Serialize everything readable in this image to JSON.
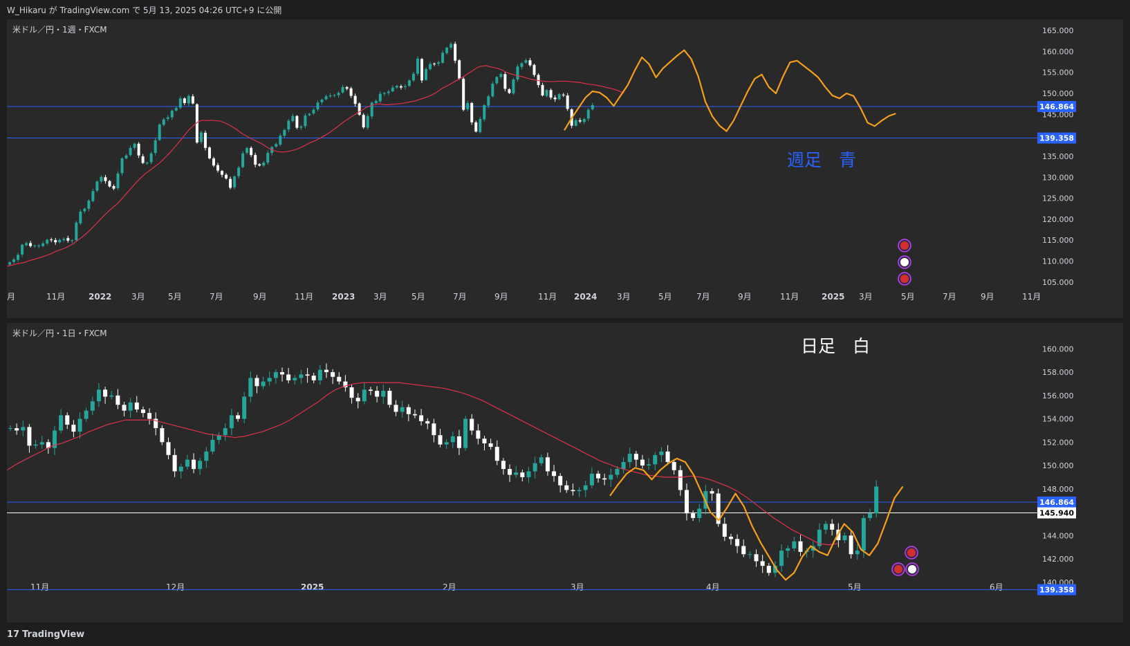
{
  "header": {
    "publish_text": "W_Hikaru が TradingView.com で 5月 13, 2025 04:26 UTC+9 に公開"
  },
  "footer": {
    "brand": "TradingView",
    "logo_icon": "tradingview-logo-icon"
  },
  "colors": {
    "background": "#292929",
    "up": "#26a69a",
    "down": "#ffffff",
    "ma": "#e0314b",
    "trend": "#f59f1c",
    "hline_blue": "#2962ff",
    "hline_white": "#ffffff",
    "label_bg": "#2962ff"
  },
  "chart_data": [
    {
      "type": "candlestick",
      "title": "米ドル／円・1週・FXCM",
      "annotation": "週足　青",
      "ylim": [
        103,
        166
      ],
      "yticks": [
        "165.000",
        "160.000",
        "155.000",
        "150.000",
        "145.000",
        "140.000",
        "135.000",
        "130.000",
        "125.000",
        "120.000",
        "115.000",
        "110.000",
        "105.000"
      ],
      "x_tick_labels": [
        "月",
        "11月",
        "2022",
        "3月",
        "5月",
        "7月",
        "9月",
        "11月",
        "2023",
        "3月",
        "5月",
        "7月",
        "9月",
        "11月",
        "2024",
        "3月",
        "5月",
        "7月",
        "9月",
        "11月",
        "2025",
        "3月",
        "5月",
        "7月",
        "9月",
        "11月"
      ],
      "x_bold_labels": [
        "2022",
        "2023",
        "2024",
        "2025"
      ],
      "horizontal_lines": [
        {
          "value": 146.864,
          "label": "146.864",
          "color": "#2962ff"
        },
        {
          "value": 139.358,
          "label": "139.358",
          "color": "#2962ff"
        }
      ],
      "series": [
        {
          "name": "close",
          "values": [
            109.7,
            110.4,
            111.5,
            113.9,
            114.3,
            113.6,
            113.7,
            113.7,
            114.2,
            115.1,
            115.0,
            114.5,
            115.1,
            115.3,
            114.9,
            115.0,
            119.2,
            121.8,
            122.5,
            124.4,
            126.7,
            129.0,
            130.1,
            129.1,
            127.8,
            127.3,
            130.9,
            134.5,
            135.2,
            137.0,
            138.0,
            135.2,
            133.4,
            133.5,
            135.7,
            138.8,
            142.6,
            143.8,
            144.3,
            145.9,
            146.5,
            148.8,
            147.7,
            149.4,
            147.6,
            138.3,
            140.7,
            137.0,
            134.5,
            132.8,
            131.6,
            130.6,
            129.7,
            127.5,
            130.2,
            132.3,
            135.7,
            137.0,
            135.3,
            133.0,
            132.8,
            133.5,
            135.8,
            137.2,
            137.9,
            139.9,
            141.3,
            143.5,
            144.6,
            141.8,
            142.1,
            144.7,
            145.1,
            146.1,
            147.8,
            148.5,
            149.3,
            149.5,
            149.6,
            150.1,
            151.5,
            151.1,
            149.4,
            147.5,
            144.9,
            141.9,
            144.6,
            147.8,
            148.2,
            149.9,
            150.1,
            150.4,
            151.4,
            151.8,
            151.4,
            151.7,
            153.1,
            154.7,
            158.3,
            153.1,
            155.8,
            157.0,
            157.0,
            157.4,
            159.7,
            160.9,
            161.8,
            157.8,
            153.5,
            146.1,
            147.7,
            143.1,
            140.9,
            143.9,
            147.2,
            149.3,
            152.3,
            153.9,
            154.6,
            151.1,
            150.1,
            153.3,
            156.4,
            157.2,
            157.9,
            156.7,
            154.4,
            152.0,
            149.5,
            150.8,
            149.0,
            148.6,
            149.8,
            149.5,
            146.3,
            142.3,
            143.6,
            143.3,
            143.9,
            146.1,
            147.2
          ],
          "opens": [
            109.2,
            109.8,
            110.3,
            111.6,
            113.8,
            114.3,
            113.7,
            113.7,
            113.6,
            114.2,
            115.2,
            115.0,
            114.5,
            115.0,
            115.5,
            114.9,
            115.0,
            119.0,
            121.9,
            122.5,
            124.3,
            126.8,
            129.0,
            130.0,
            129.1,
            127.9,
            127.4,
            131.0,
            134.5,
            135.3,
            137.0,
            138.0,
            135.0,
            133.3,
            133.6,
            135.8,
            138.9,
            142.5,
            143.9,
            144.3,
            145.9,
            146.6,
            148.8,
            147.6,
            149.3,
            147.4,
            138.4,
            140.6,
            137.1,
            134.5,
            132.9,
            131.5,
            130.6,
            129.6,
            127.6,
            130.3,
            132.4,
            135.8,
            137.0,
            135.3,
            133.1,
            132.8,
            133.5,
            135.8,
            137.3,
            137.8,
            139.9,
            141.4,
            143.4,
            144.6,
            141.8,
            142.2,
            144.8,
            145.2,
            146.2,
            147.9,
            148.6,
            149.3,
            149.6,
            149.6,
            150.2,
            151.5,
            151.2,
            149.4,
            147.6,
            144.9,
            141.8,
            144.5,
            147.7,
            148.1,
            149.9,
            150.1,
            150.5,
            151.4,
            151.7,
            151.5,
            151.8,
            153.1,
            154.7,
            158.2,
            153.2,
            155.8,
            157.1,
            157.1,
            157.3,
            159.6,
            160.9,
            161.8,
            157.9,
            153.5,
            146.2,
            147.7,
            143.1,
            140.8,
            143.8,
            147.1,
            149.3,
            152.4,
            153.9,
            154.6,
            151.0,
            150.0,
            153.3,
            156.3,
            157.3,
            157.9,
            156.8,
            154.4,
            152.0,
            149.4,
            150.8,
            149.0,
            148.6,
            149.7,
            149.5,
            146.2,
            142.3,
            143.6,
            143.2,
            144.0,
            146.2
          ]
        },
        {
          "name": "MA",
          "values": [
            108.8,
            109.0,
            109.3,
            109.5,
            109.7,
            110.1,
            110.4,
            110.7,
            111.0,
            111.4,
            111.8,
            112.3,
            112.7,
            113.1,
            113.6,
            114.2,
            115.0,
            115.8,
            116.7,
            117.7,
            118.8,
            119.9,
            121.0,
            122.0,
            122.9,
            123.8,
            125.0,
            126.2,
            127.4,
            128.6,
            129.7,
            130.7,
            131.5,
            132.3,
            133.1,
            134.0,
            135.1,
            136.2,
            137.4,
            138.7,
            140.0,
            141.3,
            142.3,
            143.2,
            143.6,
            143.5,
            143.6,
            143.5,
            143.4,
            143.0,
            142.5,
            141.9,
            141.2,
            140.4,
            139.8,
            139.2,
            138.7,
            138.2,
            137.6,
            136.9,
            136.4,
            136.1,
            136.0,
            136.1,
            136.3,
            136.6,
            137.0,
            137.5,
            138.1,
            138.5,
            139.0,
            139.6,
            140.2,
            140.9,
            141.7,
            142.5,
            143.3,
            144.0,
            144.7,
            145.4,
            146.0,
            146.7,
            147.1,
            147.4,
            147.5,
            147.3,
            147.3,
            147.4,
            147.5,
            147.6,
            147.8,
            148.0,
            148.2,
            148.6,
            148.9,
            149.3,
            149.8,
            150.4,
            151.2,
            151.7,
            152.3,
            152.9,
            153.5,
            154.1,
            154.8,
            155.5,
            156.2,
            156.5,
            156.6,
            156.3,
            156.1,
            155.8,
            155.3,
            154.8,
            154.5,
            154.2,
            154.0,
            153.7,
            153.4,
            153.2,
            153.0,
            152.9,
            152.8,
            152.8,
            152.9,
            152.9,
            152.9,
            152.8,
            152.7,
            152.6,
            152.4,
            152.2,
            152.1,
            151.9,
            151.7,
            151.4,
            151.2,
            150.9,
            150.5,
            150.1
          ]
        },
        {
          "name": "trend",
          "values": [
            141.2,
            144.0,
            146.5,
            149.0,
            150.5,
            150.2,
            149.0,
            147.0,
            149.5,
            152.0,
            155.5,
            158.6,
            157.0,
            153.8,
            156.0,
            157.5,
            159.0,
            160.3,
            158.2,
            154.0,
            148.0,
            144.5,
            142.3,
            141.0,
            143.5,
            147.0,
            150.5,
            153.5,
            154.5,
            151.5,
            150.0,
            154.0,
            157.4,
            157.8,
            156.5,
            155.2,
            153.8,
            151.5,
            149.5,
            148.8,
            150.0,
            149.4,
            146.5,
            143.0,
            142.2,
            143.5,
            144.6,
            145.2
          ]
        }
      ]
    },
    {
      "type": "candlestick",
      "title": "米ドル／円・1日・FXCM",
      "annotation": "日足　白",
      "ylim": [
        138.8,
        161.5
      ],
      "yticks": [
        "160.000",
        "158.000",
        "156.000",
        "154.000",
        "152.000",
        "150.000",
        "148.000",
        "146.000",
        "144.000",
        "142.000",
        "140.000"
      ],
      "x_tick_labels": [
        "11月",
        "12月",
        "2025",
        "2月",
        "3月",
        "4月",
        "5月",
        "6月"
      ],
      "x_bold_labels": [
        "2025"
      ],
      "horizontal_lines": [
        {
          "value": 146.864,
          "label": "146.864",
          "color": "#2962ff"
        },
        {
          "value": 145.94,
          "label": "145.940",
          "color": "#ffffff"
        },
        {
          "value": 139.358,
          "label": "139.358",
          "color": "#2962ff"
        }
      ],
      "series": [
        {
          "name": "close",
          "values": [
            153.2,
            153.0,
            153.3,
            151.7,
            151.8,
            152.0,
            151.5,
            153.0,
            154.3,
            153.5,
            152.9,
            154.0,
            154.7,
            155.5,
            156.5,
            155.9,
            156.0,
            155.2,
            154.7,
            155.4,
            154.8,
            154.5,
            154.0,
            153.2,
            152.0,
            150.9,
            149.5,
            149.9,
            150.5,
            149.7,
            150.4,
            151.2,
            152.2,
            152.6,
            153.2,
            154.3,
            154.0,
            155.9,
            157.5,
            156.8,
            157.2,
            157.5,
            158.0,
            157.8,
            157.3,
            157.5,
            157.8,
            157.7,
            157.3,
            158.2,
            158.0,
            157.6,
            157.2,
            156.7,
            155.8,
            155.5,
            156.5,
            156.4,
            155.9,
            156.4,
            155.2,
            154.6,
            155.0,
            154.4,
            154.3,
            153.8,
            153.6,
            152.6,
            151.8,
            152.0,
            152.5,
            151.5,
            154.0,
            153.0,
            152.3,
            151.9,
            151.6,
            150.4,
            149.7,
            149.2,
            149.4,
            149.0,
            149.5,
            150.2,
            150.7,
            149.5,
            149.1,
            148.3,
            147.9,
            147.8,
            147.9,
            148.3,
            149.3,
            148.9,
            148.8,
            149.2,
            149.7,
            150.3,
            151.0,
            150.5,
            150.0,
            150.1,
            150.9,
            151.2,
            150.3,
            149.6,
            147.9,
            145.9,
            145.5,
            146.3,
            147.8,
            147.6,
            145.0,
            143.9,
            143.7,
            143.1,
            142.4,
            142.4,
            141.8,
            141.4,
            140.8,
            141.4,
            142.7,
            142.9,
            143.5,
            142.6,
            142.7,
            143.1,
            144.5,
            145.0,
            144.5,
            143.6,
            144.0,
            142.4,
            142.7,
            145.5,
            145.9,
            148.2
          ]
        },
        {
          "name": "MA",
          "values": [
            149.6,
            150.1,
            150.5,
            150.9,
            151.3,
            151.7,
            151.9,
            152.2,
            152.5,
            152.9,
            153.2,
            153.5,
            153.7,
            153.9,
            153.9,
            153.9,
            153.9,
            153.7,
            153.5,
            153.3,
            153.1,
            152.9,
            152.7,
            152.6,
            152.5,
            152.4,
            152.5,
            152.7,
            152.9,
            153.2,
            153.5,
            153.9,
            154.4,
            154.9,
            155.4,
            156.0,
            156.5,
            156.8,
            157.0,
            157.1,
            157.1,
            157.1,
            157.1,
            157.1,
            157.0,
            156.9,
            156.8,
            156.7,
            156.6,
            156.4,
            156.2,
            155.9,
            155.6,
            155.2,
            154.8,
            154.4,
            154.0,
            153.6,
            153.2,
            152.8,
            152.4,
            152.0,
            151.6,
            151.2,
            150.8,
            150.4,
            150.1,
            149.8,
            149.6,
            149.4,
            149.2,
            149.1,
            149.0,
            149.0,
            149.0,
            149.1,
            149.0,
            148.8,
            148.5,
            148.2,
            147.8,
            147.3,
            146.7,
            146.1,
            145.5,
            145.0,
            144.5,
            144.1,
            143.7,
            143.3,
            143.2,
            143.3
          ]
        },
        {
          "name": "trend",
          "values": [
            147.4,
            148.4,
            149.3,
            149.8,
            149.6,
            148.8,
            149.6,
            150.2,
            150.6,
            150.3,
            149.2,
            147.6,
            146.0,
            145.3,
            146.4,
            147.6,
            146.5,
            144.8,
            143.4,
            142.2,
            141.0,
            140.2,
            140.8,
            142.2,
            143.1,
            142.6,
            142.3,
            143.8,
            145.0,
            144.3,
            142.8,
            142.3,
            143.3,
            145.2,
            147.2,
            148.2
          ]
        }
      ]
    }
  ]
}
